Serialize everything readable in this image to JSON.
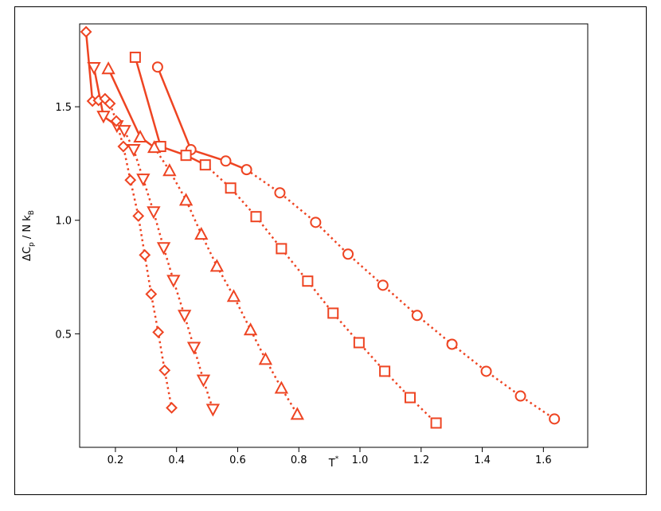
{
  "chart_data": {
    "type": "line",
    "xlabel": [
      "T",
      "*"
    ],
    "ylabel": [
      "ΔC",
      "p",
      " / N k",
      "B"
    ],
    "xlim": [
      0.083,
      1.745
    ],
    "ylim": [
      0,
      1.865
    ],
    "xticks": [
      0.2,
      0.4,
      0.6,
      0.8,
      {
        "value": 1,
        "label": "1.0"
      },
      1.2,
      1.4,
      1.6
    ],
    "yticks": [
      0.5,
      {
        "value": 1,
        "label": "1.0"
      },
      1.5
    ],
    "series": [
      {
        "marker": "circle",
        "color": "#ee4422",
        "x": [
          0.338,
          0.447,
          0.561,
          0.629,
          0.738,
          0.855,
          0.961,
          1.075,
          1.187,
          1.301,
          1.413,
          1.525,
          1.636
        ],
        "values": [
          1.675,
          1.311,
          1.261,
          1.223,
          1.121,
          0.991,
          0.851,
          0.714,
          0.581,
          0.454,
          0.335,
          0.226,
          0.125
        ],
        "segment_styles": [
          "solid",
          "solid",
          "solid",
          "dotted",
          "dotted",
          "dotted",
          "dotted",
          "dotted",
          "dotted",
          "dotted",
          "dotted",
          "dotted"
        ]
      },
      {
        "marker": "square",
        "color": "#ee4422",
        "x": [
          0.265,
          0.348,
          0.431,
          0.494,
          0.577,
          0.66,
          0.743,
          0.829,
          0.912,
          0.997,
          1.081,
          1.164,
          1.249
        ],
        "values": [
          1.718,
          1.325,
          1.286,
          1.244,
          1.142,
          1.016,
          0.875,
          0.732,
          0.591,
          0.461,
          0.335,
          0.219,
          0.107
        ],
        "segment_styles": [
          "solid",
          "solid",
          "solid",
          "dotted",
          "dotted",
          "dotted",
          "dotted",
          "dotted",
          "dotted",
          "dotted",
          "dotted",
          "dotted"
        ]
      },
      {
        "marker": "triangle-up",
        "color": "#ee4422",
        "x": [
          0.177,
          0.281,
          0.327,
          0.377,
          0.431,
          0.481,
          0.532,
          0.587,
          0.642,
          0.691,
          0.743,
          0.795
        ],
        "values": [
          1.668,
          1.367,
          1.321,
          1.219,
          1.089,
          0.939,
          0.798,
          0.665,
          0.518,
          0.388,
          0.261,
          0.146
        ],
        "segment_styles": [
          "solid",
          "solid",
          "dotted",
          "dotted",
          "dotted",
          "dotted",
          "dotted",
          "dotted",
          "dotted",
          "dotted",
          "dotted"
        ]
      },
      {
        "marker": "triangle-down",
        "color": "#ee4422",
        "x": [
          0.13,
          0.161,
          0.205,
          0.229,
          0.26,
          0.291,
          0.325,
          0.358,
          0.39,
          0.426,
          0.457,
          0.488,
          0.519
        ],
        "values": [
          1.672,
          1.458,
          1.416,
          1.395,
          1.311,
          1.181,
          1.037,
          0.879,
          0.735,
          0.581,
          0.44,
          0.296,
          0.167
        ],
        "segment_styles": [
          "solid",
          "solid",
          "solid",
          "dotted",
          "dotted",
          "dotted",
          "dotted",
          "dotted",
          "dotted",
          "dotted",
          "dotted",
          "dotted"
        ]
      },
      {
        "marker": "diamond",
        "color": "#ee4422",
        "x": [
          0.104,
          0.125,
          0.145,
          0.166,
          0.182,
          0.203,
          0.226,
          0.249,
          0.275,
          0.296,
          0.317,
          0.34,
          0.361,
          0.384
        ],
        "values": [
          1.83,
          1.525,
          1.528,
          1.535,
          1.514,
          1.437,
          1.325,
          1.177,
          1.019,
          0.847,
          0.675,
          0.507,
          0.339,
          0.174
        ],
        "segment_styles": [
          "solid",
          "solid",
          "solid",
          "solid",
          "dotted",
          "dotted",
          "dotted",
          "dotted",
          "dotted",
          "dotted",
          "dotted",
          "dotted",
          "dotted"
        ]
      }
    ]
  }
}
